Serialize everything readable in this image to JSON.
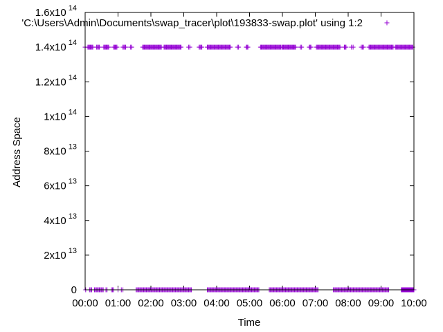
{
  "chart_data": {
    "type": "scatter",
    "xlabel": "Time",
    "ylabel": "Address Space",
    "xlim": [
      "00:00",
      "10:00"
    ],
    "ylim": [
      0,
      160000000000000.0
    ],
    "grid": false,
    "legend_position": "top-right",
    "x_ticks": [
      "00:00",
      "01:00",
      "02:00",
      "03:00",
      "04:00",
      "05:00",
      "06:00",
      "07:00",
      "08:00",
      "09:00",
      "10:00"
    ],
    "y_ticks": [
      {
        "value": 0,
        "mantissa": "0",
        "exponent": ""
      },
      {
        "value": 20000000000000.0,
        "mantissa": "2x10",
        "exponent": "13"
      },
      {
        "value": 40000000000000.0,
        "mantissa": "4x10",
        "exponent": "13"
      },
      {
        "value": 60000000000000.0,
        "mantissa": "6x10",
        "exponent": "13"
      },
      {
        "value": 80000000000000.0,
        "mantissa": "8x10",
        "exponent": "13"
      },
      {
        "value": 100000000000000.0,
        "mantissa": "1x10",
        "exponent": "14"
      },
      {
        "value": 120000000000000.0,
        "mantissa": "1.2x10",
        "exponent": "14"
      },
      {
        "value": 140000000000000.0,
        "mantissa": "1.4x10",
        "exponent": "14"
      },
      {
        "value": 160000000000000.0,
        "mantissa": "1.6x10",
        "exponent": "14"
      }
    ],
    "series": [
      {
        "name": "'C:\\Users\\Admin\\Documents\\swap_tracer\\plot\\193833-swap.plot' using 1:2",
        "color": "#9400d3",
        "marker": "plus",
        "clusters": [
          {
            "y": 140000000000000.0,
            "from": "00:00",
            "to": "00:01",
            "count": 1
          },
          {
            "y": 140000000000000.0,
            "from": "00:05",
            "to": "00:14",
            "count": 7
          },
          {
            "y": 140000000000000.0,
            "from": "00:21",
            "to": "00:26",
            "count": 4
          },
          {
            "y": 140000000000000.0,
            "from": "00:34",
            "to": "00:43",
            "count": 7
          },
          {
            "y": 140000000000000.0,
            "from": "00:52",
            "to": "00:58",
            "count": 5
          },
          {
            "y": 140000000000000.0,
            "from": "01:09",
            "to": "01:14",
            "count": 4
          },
          {
            "y": 140000000000000.0,
            "from": "01:23",
            "to": "01:25",
            "count": 2
          },
          {
            "y": 140000000000000.0,
            "from": "01:45",
            "to": "02:19",
            "count": 24
          },
          {
            "y": 140000000000000.0,
            "from": "02:24",
            "to": "02:55",
            "count": 22
          },
          {
            "y": 140000000000000.0,
            "from": "03:09",
            "to": "03:11",
            "count": 2
          },
          {
            "y": 140000000000000.0,
            "from": "03:28",
            "to": "03:33",
            "count": 4
          },
          {
            "y": 140000000000000.0,
            "from": "03:43",
            "to": "04:25",
            "count": 28
          },
          {
            "y": 140000000000000.0,
            "from": "04:38",
            "to": "04:40",
            "count": 2
          },
          {
            "y": 140000000000000.0,
            "from": "04:54",
            "to": "04:57",
            "count": 3
          },
          {
            "y": 140000000000000.0,
            "from": "05:20",
            "to": "05:57",
            "count": 26
          },
          {
            "y": 140000000000000.0,
            "from": "05:59",
            "to": "06:24",
            "count": 18
          },
          {
            "y": 140000000000000.0,
            "from": "06:33",
            "to": "06:35",
            "count": 2
          },
          {
            "y": 140000000000000.0,
            "from": "06:49",
            "to": "06:52",
            "count": 3
          },
          {
            "y": 140000000000000.0,
            "from": "07:02",
            "to": "07:45",
            "count": 29
          },
          {
            "y": 140000000000000.0,
            "from": "07:53",
            "to": "07:56",
            "count": 3
          },
          {
            "y": 140000000000000.0,
            "from": "08:06",
            "to": "08:09",
            "count": 2
          },
          {
            "y": 140000000000000.0,
            "from": "08:24",
            "to": "08:28",
            "count": 3
          },
          {
            "y": 140000000000000.0,
            "from": "08:38",
            "to": "09:22",
            "count": 30
          },
          {
            "y": 140000000000000.0,
            "from": "09:26",
            "to": "09:58",
            "count": 22
          },
          {
            "y": 0,
            "from": "00:01",
            "to": "00:02",
            "count": 1
          },
          {
            "y": 0,
            "from": "00:08",
            "to": "00:12",
            "count": 3
          },
          {
            "y": 0,
            "from": "00:17",
            "to": "00:33",
            "count": 10
          },
          {
            "y": 0,
            "from": "00:38",
            "to": "00:40",
            "count": 2
          },
          {
            "y": 0,
            "from": "00:48",
            "to": "00:52",
            "count": 3
          },
          {
            "y": 0,
            "from": "01:00",
            "to": "01:01",
            "count": 1
          },
          {
            "y": 0,
            "from": "01:06",
            "to": "01:09",
            "count": 2
          },
          {
            "y": 0,
            "from": "01:33",
            "to": "03:14",
            "count": 60
          },
          {
            "y": 0,
            "from": "03:43",
            "to": "05:17",
            "count": 58
          },
          {
            "y": 0,
            "from": "05:36",
            "to": "07:05",
            "count": 55
          },
          {
            "y": 0,
            "from": "07:33",
            "to": "09:14",
            "count": 62
          },
          {
            "y": 0,
            "from": "09:37",
            "to": "11:22",
            "count": 65
          }
        ]
      }
    ]
  }
}
